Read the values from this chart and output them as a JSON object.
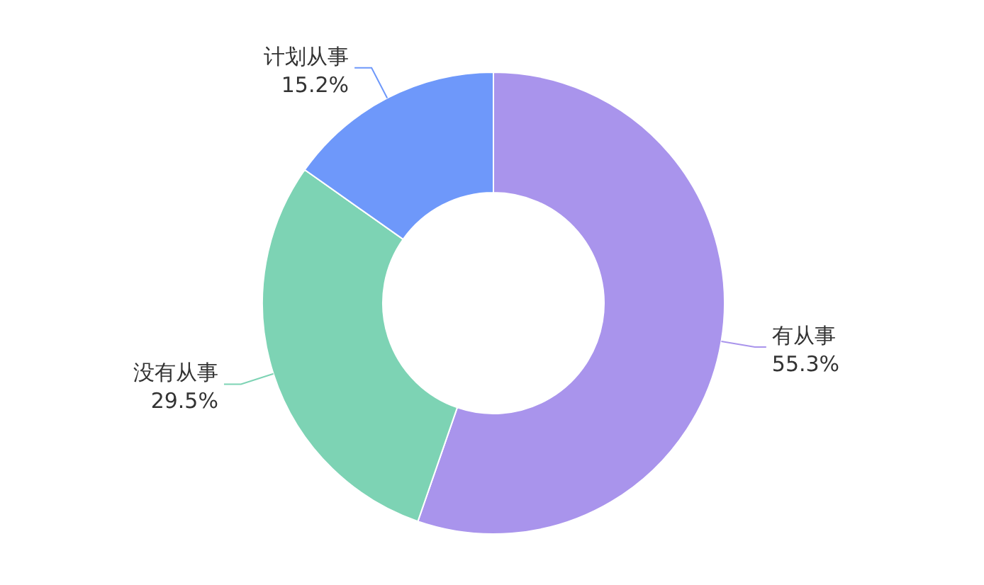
{
  "chart_data": {
    "type": "donut",
    "categories": [
      "有从事",
      "没有从事",
      "计划从事"
    ],
    "values": [
      55.3,
      29.5,
      15.2
    ],
    "colors": [
      "#a994ec",
      "#7dd3b4",
      "#6e98fa"
    ],
    "value_labels": [
      "55.3%",
      "29.5%",
      "15.2%"
    ]
  }
}
